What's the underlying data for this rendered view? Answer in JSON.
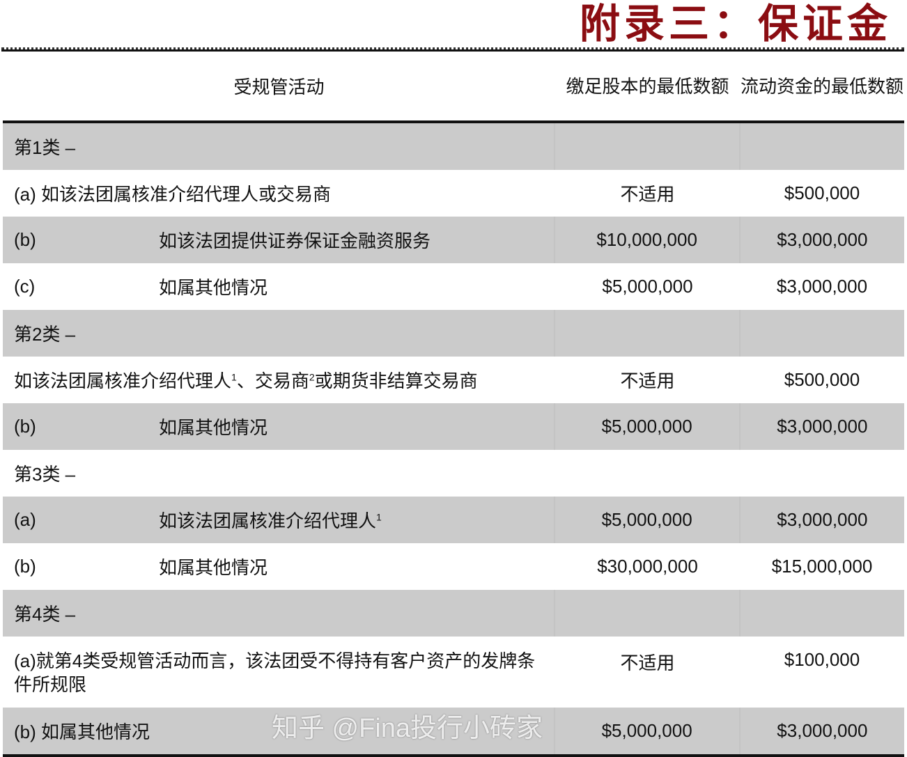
{
  "title": "附录三：保证金",
  "headers": {
    "activity": "受规管活动",
    "paid_up_capital": "缴足股本的最低数额",
    "liquid_capital": "流动资金的最低数额"
  },
  "rows": [
    {
      "type": "category",
      "text": "第1类 –"
    },
    {
      "type": "item",
      "label": "(a)",
      "desc": "如该法团属核准介绍代理人或交易商",
      "inline": true,
      "capital": "不适用",
      "liquid": "$500,000"
    },
    {
      "type": "item",
      "label": "(b)",
      "desc": "如该法团提供证券保证金融资服务",
      "capital": "$10,000,000",
      "liquid": "$3,000,000"
    },
    {
      "type": "item",
      "label": "(c)",
      "desc": "如属其他情况",
      "capital": "$5,000,000",
      "liquid": "$3,000,000"
    },
    {
      "type": "category",
      "text": "第2类 –"
    },
    {
      "type": "item",
      "text_parts": [
        "如该法团属核准介绍代理人",
        "1",
        "、交易商",
        "2",
        "或期货非结算交易商"
      ],
      "capital": "不适用",
      "liquid": "$500,000"
    },
    {
      "type": "item",
      "label": "(b)",
      "desc": "如属其他情况",
      "capital": "$5,000,000",
      "liquid": "$3,000,000"
    },
    {
      "type": "category",
      "text": "第3类 –"
    },
    {
      "type": "item",
      "label": "(a)",
      "desc": "如该法团属核准介绍代理人",
      "sup": "1",
      "capital": "$5,000,000",
      "liquid": "$3,000,000"
    },
    {
      "type": "item",
      "label": "(b)",
      "desc": "如属其他情况",
      "capital": "$30,000,000",
      "liquid": "$15,000,000"
    },
    {
      "type": "category",
      "text": "第4类 –"
    },
    {
      "type": "item",
      "text": "(a)就第4类受规管活动而言，该法团受不得持有客户资产的发牌条件所规限",
      "capital": "不适用",
      "liquid": "$100,000"
    },
    {
      "type": "item",
      "label": "(b)",
      "desc": "如属其他情况",
      "inline": true,
      "capital": "$5,000,000",
      "liquid": "$3,000,000"
    }
  ],
  "watermark": "知乎 @Fina投行小砖家"
}
